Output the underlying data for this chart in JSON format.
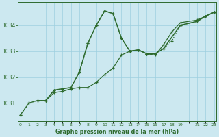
{
  "title": "Graphe pression niveau de la mer (hPa)",
  "background_color": "#cce8f0",
  "grid_color": "#9ecfdf",
  "line_color": "#2d6a2d",
  "ylim": [
    1030.3,
    1034.9
  ],
  "yticks": [
    1031,
    1032,
    1033,
    1034
  ],
  "xlim": [
    -0.3,
    23.3
  ],
  "series1_x": [
    0,
    1,
    2,
    3,
    4,
    5,
    6,
    7,
    8,
    9,
    10,
    11,
    12,
    13,
    14,
    15,
    16,
    17,
    18,
    19,
    21,
    22,
    23
  ],
  "series1_y": [
    1030.55,
    1031.0,
    1031.1,
    1031.1,
    1031.5,
    1031.55,
    1031.6,
    1032.2,
    1033.3,
    1034.0,
    1034.55,
    1034.45,
    1033.5,
    1033.0,
    1033.05,
    1032.9,
    1032.9,
    1033.1,
    1033.4,
    1034.0,
    1034.15,
    1034.35,
    1034.5
  ],
  "series2_x": [
    0,
    1,
    2,
    3,
    4,
    5,
    6,
    7,
    8,
    9,
    10,
    11,
    12,
    13,
    14,
    15,
    16,
    17,
    18,
    19,
    21,
    22,
    23
  ],
  "series2_y": [
    1030.55,
    1031.0,
    1031.1,
    1031.1,
    1031.4,
    1031.45,
    1031.55,
    1031.6,
    1031.6,
    1031.8,
    1032.1,
    1032.35,
    1032.85,
    1033.0,
    1033.05,
    1032.9,
    1032.85,
    1033.25,
    1033.75,
    1034.1,
    1034.2,
    1034.35,
    1034.5
  ],
  "series3_x": [
    3,
    4,
    5,
    6,
    7,
    8,
    9,
    10,
    11,
    12,
    13,
    14,
    15,
    16,
    17,
    19,
    21,
    22,
    23
  ],
  "series3_y": [
    1031.1,
    1031.5,
    1031.55,
    1031.6,
    1032.2,
    1033.3,
    1034.0,
    1034.55,
    1034.45,
    1033.5,
    1033.0,
    1033.05,
    1032.9,
    1032.9,
    1033.1,
    1034.0,
    1034.15,
    1034.35,
    1034.5
  ]
}
